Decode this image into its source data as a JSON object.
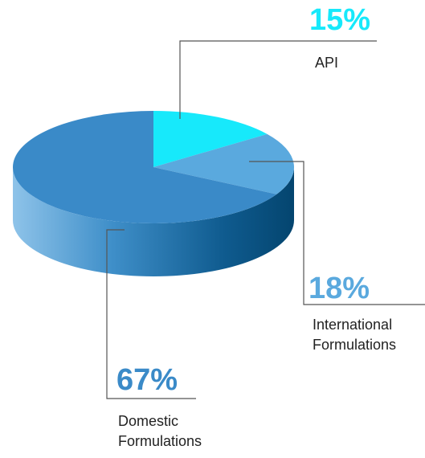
{
  "chart_data": {
    "type": "pie",
    "title": "",
    "slices": [
      {
        "label_lines": [
          "API"
        ],
        "percent_label": "15%",
        "value": 15,
        "color": "#17e9fb"
      },
      {
        "label_lines": [
          "International",
          "Formulations"
        ],
        "percent_label": "18%",
        "value": 18,
        "color": "#5aa9de"
      },
      {
        "label_lines": [
          "Domestic",
          "Formulations"
        ],
        "percent_label": "67%",
        "value": 67,
        "color": "#3a8ac8"
      }
    ],
    "legend": "none",
    "labels": "callout"
  }
}
